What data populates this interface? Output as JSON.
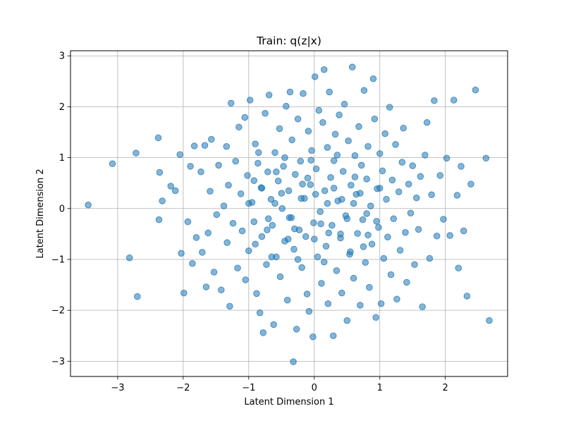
{
  "chart_data": {
    "type": "scatter",
    "title": "Train: q(z|x)",
    "xlabel": "Latent Dimension 1",
    "ylabel": "Latent Dimension 2",
    "xlim": [
      -3.72,
      2.95
    ],
    "ylim": [
      -3.3,
      3.1
    ],
    "xticks": [
      -3,
      -2,
      -1,
      0,
      1,
      2
    ],
    "yticks": [
      -3,
      -2,
      -1,
      0,
      1,
      2,
      3
    ],
    "xtick_labels": [
      "−3",
      "−2",
      "−1",
      "0",
      "1",
      "2"
    ],
    "ytick_labels": [
      "−3",
      "−2",
      "−1",
      "0",
      "1",
      "2",
      "3"
    ],
    "grid": true,
    "marker_color": "#1f77b4",
    "marker_alpha": 0.55,
    "points": [
      [
        -3.45,
        0.07
      ],
      [
        -3.08,
        0.88
      ],
      [
        -2.82,
        -0.97
      ],
      [
        -2.72,
        1.09
      ],
      [
        -2.7,
        -1.73
      ],
      [
        -2.38,
        1.39
      ],
      [
        -2.36,
        0.71
      ],
      [
        -2.37,
        -0.22
      ],
      [
        -2.32,
        0.15
      ],
      [
        -2.19,
        0.44
      ],
      [
        -2.12,
        0.35
      ],
      [
        -2.05,
        1.06
      ],
      [
        -2.03,
        -0.88
      ],
      [
        -1.99,
        -1.66
      ],
      [
        -1.93,
        -0.26
      ],
      [
        -1.89,
        0.83
      ],
      [
        -1.86,
        -1.08
      ],
      [
        -1.83,
        1.23
      ],
      [
        -1.8,
        -0.57
      ],
      [
        -1.73,
        0.72
      ],
      [
        -1.71,
        -0.86
      ],
      [
        -1.67,
        1.24
      ],
      [
        -1.65,
        -1.54
      ],
      [
        -1.62,
        -0.48
      ],
      [
        -1.59,
        0.34
      ],
      [
        -1.57,
        1.36
      ],
      [
        -1.53,
        -1.25
      ],
      [
        -1.49,
        -0.12
      ],
      [
        -1.46,
        0.85
      ],
      [
        -1.42,
        -1.6
      ],
      [
        -1.38,
        0.05
      ],
      [
        -1.34,
        1.22
      ],
      [
        -1.33,
        -0.67
      ],
      [
        -1.31,
        0.46
      ],
      [
        -1.29,
        -1.92
      ],
      [
        -1.27,
        2.07
      ],
      [
        -1.24,
        -0.29
      ],
      [
        -1.2,
        0.93
      ],
      [
        -1.17,
        -1.17
      ],
      [
        -1.15,
        1.6
      ],
      [
        -1.12,
        0.29
      ],
      [
        -1.1,
        -0.44
      ],
      [
        -1.06,
        1.79
      ],
      [
        -1.05,
        -1.4
      ],
      [
        -1.02,
        0.65
      ],
      [
        -1.0,
        -0.83
      ],
      [
        -0.98,
        2.13
      ],
      [
        -0.95,
        0.12
      ],
      [
        -0.92,
        -0.26
      ],
      [
        -0.9,
        1.27
      ],
      [
        -0.88,
        -1.67
      ],
      [
        -0.86,
        0.89
      ],
      [
        -0.83,
        -2.05
      ],
      [
        -0.81,
        0.41
      ],
      [
        -0.8,
        -0.55
      ],
      [
        -0.78,
        -2.44
      ],
      [
        -0.75,
        1.87
      ],
      [
        -0.73,
        -1.1
      ],
      [
        -0.71,
        0.72
      ],
      [
        -0.69,
        2.23
      ],
      [
        -0.66,
        0.18
      ],
      [
        -0.64,
        -0.33
      ],
      [
        -0.62,
        -2.28
      ],
      [
        -0.6,
        1.1
      ],
      [
        -0.58,
        -0.95
      ],
      [
        -0.55,
        0.54
      ],
      [
        -0.53,
        1.57
      ],
      [
        -0.52,
        -1.34
      ],
      [
        -0.49,
        0.0
      ],
      [
        -0.47,
        0.83
      ],
      [
        -0.45,
        -0.64
      ],
      [
        -0.43,
        2.01
      ],
      [
        -0.41,
        -1.8
      ],
      [
        -0.39,
        0.35
      ],
      [
        -0.37,
        2.29
      ],
      [
        -0.35,
        -0.18
      ],
      [
        -0.34,
        1.35
      ],
      [
        -0.32,
        -3.01
      ],
      [
        -0.31,
        -0.8
      ],
      [
        -0.29,
        0.67
      ],
      [
        -0.27,
        -2.37
      ],
      [
        -0.25,
        1.76
      ],
      [
        -0.23,
        -0.42
      ],
      [
        -0.21,
        0.93
      ],
      [
        -0.19,
        -1.16
      ],
      [
        -0.17,
        2.26
      ],
      [
        -0.15,
        0.2
      ],
      [
        -0.13,
        -0.55
      ],
      [
        -0.11,
        -1.68
      ],
      [
        -0.09,
        1.52
      ],
      [
        -0.08,
        -2.02
      ],
      [
        -0.06,
        0.47
      ],
      [
        -0.04,
        1.14
      ],
      [
        -0.02,
        -2.52
      ],
      [
        -0.01,
        -0.28
      ],
      [
        0.01,
        2.59
      ],
      [
        0.03,
        0.78
      ],
      [
        0.05,
        -0.95
      ],
      [
        0.07,
        1.93
      ],
      [
        0.09,
        -0.06
      ],
      [
        0.11,
        -1.47
      ],
      [
        0.13,
        1.69
      ],
      [
        0.15,
        2.73
      ],
      [
        0.16,
        0.35
      ],
      [
        0.18,
        -0.74
      ],
      [
        0.2,
        1.2
      ],
      [
        0.21,
        -1.87
      ],
      [
        0.23,
        2.29
      ],
      [
        0.25,
        0.61
      ],
      [
        0.27,
        -0.33
      ],
      [
        0.29,
        -2.5
      ],
      [
        0.3,
        0.94
      ],
      [
        0.32,
        1.46
      ],
      [
        0.34,
        -1.22
      ],
      [
        0.36,
        0.15
      ],
      [
        0.38,
        1.84
      ],
      [
        0.4,
        -0.58
      ],
      [
        0.42,
        -1.66
      ],
      [
        0.44,
        0.73
      ],
      [
        0.46,
        2.05
      ],
      [
        0.48,
        -0.14
      ],
      [
        0.5,
        -2.2
      ],
      [
        0.52,
        1.33
      ],
      [
        0.54,
        -0.9
      ],
      [
        0.56,
        0.46
      ],
      [
        0.58,
        2.78
      ],
      [
        0.6,
        -1.37
      ],
      [
        0.62,
        1.04
      ],
      [
        0.64,
        0.28
      ],
      [
        0.66,
        -0.49
      ],
      [
        0.68,
        1.61
      ],
      [
        0.7,
        -1.9
      ],
      [
        0.72,
        0.85
      ],
      [
        0.74,
        -0.22
      ],
      [
        0.76,
        2.32
      ],
      [
        0.78,
        -1.06
      ],
      [
        0.8,
        0.58
      ],
      [
        0.82,
        1.22
      ],
      [
        0.84,
        -1.55
      ],
      [
        0.86,
        0.05
      ],
      [
        0.88,
        -0.7
      ],
      [
        0.9,
        2.55
      ],
      [
        0.92,
        1.76
      ],
      [
        0.94,
        -2.14
      ],
      [
        0.96,
        0.39
      ],
      [
        0.98,
        -0.37
      ],
      [
        1.0,
        1.08
      ],
      [
        1.02,
        -1.87
      ],
      [
        1.04,
        0.74
      ],
      [
        1.06,
        -0.98
      ],
      [
        1.08,
        1.47
      ],
      [
        1.1,
        0.18
      ],
      [
        1.12,
        -0.56
      ],
      [
        1.15,
        1.99
      ],
      [
        1.17,
        -1.3
      ],
      [
        1.19,
        0.56
      ],
      [
        1.21,
        -0.2
      ],
      [
        1.24,
        1.26
      ],
      [
        1.26,
        -1.78
      ],
      [
        1.29,
        0.33
      ],
      [
        1.31,
        -0.82
      ],
      [
        1.34,
        0.91
      ],
      [
        1.36,
        1.58
      ],
      [
        1.39,
        -0.47
      ],
      [
        1.41,
        -1.45
      ],
      [
        1.44,
        0.48
      ],
      [
        1.47,
        -0.09
      ],
      [
        1.5,
        0.84
      ],
      [
        1.53,
        -1.1
      ],
      [
        1.56,
        0.21
      ],
      [
        1.59,
        -0.41
      ],
      [
        1.62,
        0.63
      ],
      [
        1.65,
        -1.93
      ],
      [
        1.69,
        1.05
      ],
      [
        1.72,
        1.69
      ],
      [
        1.76,
        -0.98
      ],
      [
        1.79,
        0.27
      ],
      [
        1.83,
        2.12
      ],
      [
        1.87,
        -0.54
      ],
      [
        1.92,
        0.65
      ],
      [
        1.97,
        -0.21
      ],
      [
        2.02,
        0.99
      ],
      [
        2.07,
        -0.53
      ],
      [
        2.13,
        2.13
      ],
      [
        2.18,
        0.26
      ],
      [
        2.2,
        -1.17
      ],
      [
        2.24,
        0.83
      ],
      [
        2.28,
        -0.44
      ],
      [
        2.33,
        -1.72
      ],
      [
        2.39,
        0.48
      ],
      [
        2.46,
        2.33
      ],
      [
        2.62,
        0.99
      ],
      [
        2.67,
        -2.2
      ],
      [
        -0.7,
        -0.2
      ],
      [
        -0.5,
        0.3
      ],
      [
        -0.3,
        -0.4
      ],
      [
        -0.1,
        0.6
      ],
      [
        0.1,
        -0.3
      ],
      [
        0.3,
        0.4
      ],
      [
        0.5,
        -0.2
      ],
      [
        0.7,
        0.3
      ],
      [
        -0.6,
        0.1
      ],
      [
        -0.4,
        -0.6
      ],
      [
        -0.2,
        0.2
      ],
      [
        0.0,
        -0.6
      ],
      [
        0.2,
        0.1
      ],
      [
        0.4,
        -0.5
      ],
      [
        0.6,
        0.1
      ],
      [
        -0.8,
        0.4
      ],
      [
        -1.0,
        0.1
      ],
      [
        0.8,
        -0.1
      ],
      [
        1.0,
        0.4
      ],
      [
        -0.9,
        -0.7
      ],
      [
        -0.65,
        -0.95
      ],
      [
        -0.45,
        1.0
      ],
      [
        -0.25,
        -1.0
      ],
      [
        -0.05,
        0.95
      ],
      [
        0.15,
        -1.05
      ],
      [
        0.35,
        1.05
      ],
      [
        0.55,
        -0.85
      ],
      [
        0.75,
        -0.75
      ],
      [
        -0.85,
        1.1
      ],
      [
        0.95,
        -0.25
      ],
      [
        -0.58,
        0.72
      ],
      [
        -0.38,
        -0.18
      ],
      [
        -0.18,
        0.48
      ],
      [
        0.02,
        0.28
      ],
      [
        0.22,
        -0.48
      ],
      [
        0.42,
        0.18
      ],
      [
        0.62,
        0.62
      ],
      [
        -0.72,
        -0.42
      ],
      [
        0.82,
        -0.52
      ],
      [
        -0.92,
        0.55
      ]
    ]
  }
}
